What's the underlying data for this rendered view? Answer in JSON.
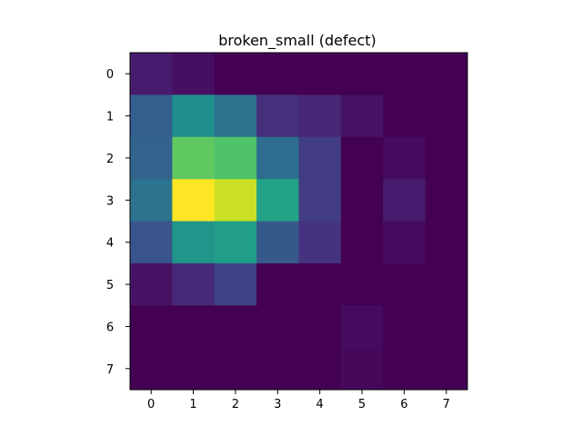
{
  "chart_data": {
    "type": "heatmap",
    "title": "broken_small (defect)",
    "xlabel": "",
    "ylabel": "",
    "x_ticks": [
      "0",
      "1",
      "2",
      "3",
      "4",
      "5",
      "6",
      "7"
    ],
    "y_ticks": [
      "0",
      "1",
      "2",
      "3",
      "4",
      "5",
      "6",
      "7"
    ],
    "colormap": "viridis",
    "vmin": 0,
    "vmax": 1,
    "grid": false,
    "values": [
      [
        0.08,
        0.04,
        0.0,
        0.0,
        0.0,
        0.0,
        0.0,
        0.0
      ],
      [
        0.3,
        0.5,
        0.38,
        0.14,
        0.11,
        0.05,
        0.0,
        0.0
      ],
      [
        0.32,
        0.75,
        0.72,
        0.36,
        0.18,
        0.0,
        0.03,
        0.0
      ],
      [
        0.38,
        1.0,
        0.92,
        0.58,
        0.18,
        0.0,
        0.08,
        0.0
      ],
      [
        0.26,
        0.52,
        0.56,
        0.28,
        0.15,
        0.0,
        0.03,
        0.0
      ],
      [
        0.05,
        0.12,
        0.2,
        0.0,
        0.0,
        0.0,
        0.0,
        0.0
      ],
      [
        0.0,
        0.0,
        0.0,
        0.0,
        0.0,
        0.03,
        0.0,
        0.0
      ],
      [
        0.0,
        0.0,
        0.0,
        0.0,
        0.0,
        0.02,
        0.0,
        0.0
      ]
    ]
  }
}
